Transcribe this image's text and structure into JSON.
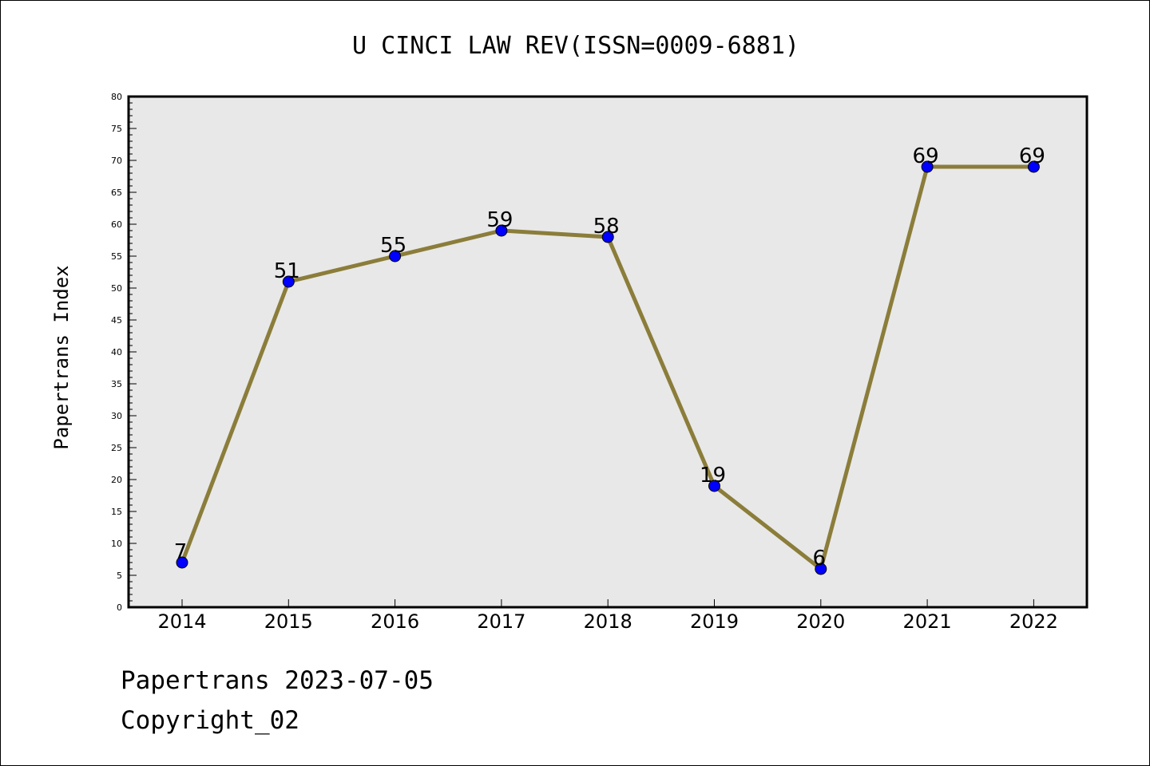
{
  "chart_data": {
    "type": "line",
    "title": "U CINCI LAW REV(ISSN=0009-6881)",
    "xlabel": "",
    "ylabel": "Papertrans Index",
    "categories": [
      "2014",
      "2015",
      "2016",
      "2017",
      "2018",
      "2019",
      "2020",
      "2021",
      "2022"
    ],
    "series": [
      {
        "values": [
          7,
          51,
          55,
          59,
          58,
          19,
          6,
          69,
          69
        ]
      }
    ],
    "ylim": [
      0,
      80
    ],
    "yticks": [
      "0",
      "5",
      "10",
      "15",
      "20",
      "25",
      "30",
      "35",
      "40",
      "45",
      "50",
      "55",
      "60",
      "65",
      "70",
      "75",
      "80"
    ],
    "grid": false,
    "line_color": "#8b7d3a",
    "marker_color": "#0000ff",
    "plot_background": "#e8e8e8"
  },
  "footer": {
    "date_line": "Papertrans 2023-07-05",
    "copyright_line": "Copyright_02"
  }
}
